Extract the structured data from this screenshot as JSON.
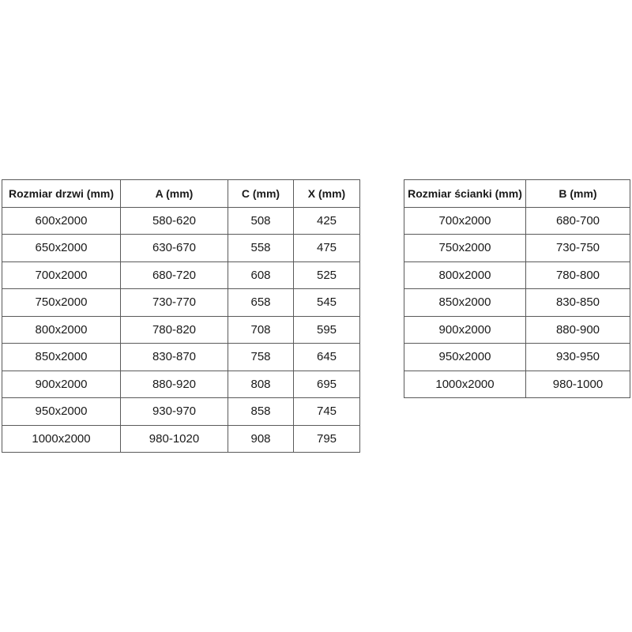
{
  "doors_table": {
    "headers": [
      "Rozmiar drzwi (mm)",
      "A (mm)",
      "C (mm)",
      "X (mm)"
    ],
    "rows": [
      [
        "600x2000",
        "580-620",
        "508",
        "425"
      ],
      [
        "650x2000",
        "630-670",
        "558",
        "475"
      ],
      [
        "700x2000",
        "680-720",
        "608",
        "525"
      ],
      [
        "750x2000",
        "730-770",
        "658",
        "545"
      ],
      [
        "800x2000",
        "780-820",
        "708",
        "595"
      ],
      [
        "850x2000",
        "830-870",
        "758",
        "645"
      ],
      [
        "900x2000",
        "880-920",
        "808",
        "695"
      ],
      [
        "950x2000",
        "930-970",
        "858",
        "745"
      ],
      [
        "1000x2000",
        "980-1020",
        "908",
        "795"
      ]
    ]
  },
  "panel_table": {
    "headers": [
      "Rozmiar ścianki (mm)",
      "B (mm)"
    ],
    "rows": [
      [
        "700x2000",
        "680-700"
      ],
      [
        "750x2000",
        "730-750"
      ],
      [
        "800x2000",
        "780-800"
      ],
      [
        "850x2000",
        "830-850"
      ],
      [
        "900x2000",
        "880-900"
      ],
      [
        "950x2000",
        "930-950"
      ],
      [
        "1000x2000",
        "980-1000"
      ]
    ]
  }
}
